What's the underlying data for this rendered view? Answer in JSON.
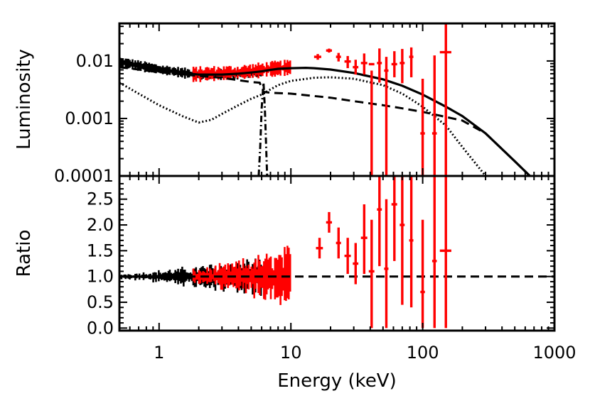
{
  "chart_data": [
    {
      "type": "line",
      "panel": "top",
      "title": "",
      "xlabel": "",
      "ylabel": "Luminosity",
      "xscale": "log",
      "yscale": "log",
      "xlim": [
        0.5,
        1000
      ],
      "ylim": [
        0.0001,
        0.045
      ],
      "y_tick_labels": [
        {
          "value": 0.01,
          "label": "0.01"
        },
        {
          "value": 0.001,
          "label": "0.001"
        },
        {
          "value": 0.0001,
          "label": "0.0001"
        }
      ],
      "series": [
        {
          "name": "total model",
          "style": "solid",
          "color": "#000000",
          "x": [
            0.5,
            0.7,
            1,
            1.5,
            2,
            3,
            4,
            5,
            6,
            7,
            8,
            10,
            13,
            15,
            20,
            30,
            50,
            70,
            100,
            150,
            200,
            300,
            500,
            700
          ],
          "y": [
            0.0098,
            0.0078,
            0.0069,
            0.0062,
            0.0058,
            0.0058,
            0.006,
            0.0063,
            0.0066,
            0.007,
            0.0073,
            0.0075,
            0.0076,
            0.0075,
            0.0071,
            0.0062,
            0.0048,
            0.0037,
            0.0026,
            0.0016,
            0.0011,
            0.00055,
            0.00018,
            8.5e-05
          ]
        },
        {
          "name": "power-law component",
          "style": "dashed",
          "color": "#000000",
          "x": [
            0.5,
            0.7,
            1,
            2,
            3,
            5,
            5.8,
            6.2,
            7,
            10,
            20,
            30,
            50,
            70,
            100,
            200,
            300,
            500,
            700
          ],
          "y": [
            0.0078,
            0.0071,
            0.0064,
            0.0055,
            0.0051,
            0.0043,
            0.0042,
            0.0029,
            0.0028,
            0.0027,
            0.0023,
            0.002,
            0.0017,
            0.0015,
            0.0013,
            0.00092,
            0.00055,
            0.00018,
            8.5e-05
          ]
        },
        {
          "name": "reflection component",
          "style": "dotted",
          "color": "#000000",
          "x": [
            0.5,
            0.7,
            1,
            1.5,
            2,
            2.5,
            3,
            4,
            5,
            6,
            7,
            8,
            10,
            15,
            20,
            30,
            50,
            70,
            100,
            150,
            200,
            300
          ],
          "y": [
            0.0042,
            0.0027,
            0.0017,
            0.0011,
            0.00085,
            0.00095,
            0.0012,
            0.0017,
            0.0022,
            0.0026,
            0.0032,
            0.0038,
            0.0045,
            0.0051,
            0.0052,
            0.0049,
            0.0038,
            0.0027,
            0.0016,
            0.00075,
            0.00032,
            0.0001
          ]
        },
        {
          "name": "Fe K line",
          "style": "dash-dot",
          "color": "#000000",
          "x": [
            5.7,
            5.85,
            6.0,
            6.2,
            6.35,
            6.5,
            6.6
          ],
          "y": [
            0.0001,
            0.0003,
            0.0015,
            0.0042,
            0.0015,
            0.0003,
            0.0001
          ]
        }
      ],
      "data_sets": [
        {
          "name": "black data (soft band)",
          "color": "#000000",
          "x_range": [
            0.5,
            6.0
          ],
          "y_level_at": [
            [
              0.5,
              0.0096
            ],
            [
              1,
              0.0071
            ],
            [
              2,
              0.0057
            ],
            [
              4,
              0.0059
            ],
            [
              6,
              0.0063
            ]
          ],
          "scatter_fraction": 0.18
        },
        {
          "name": "red data (soft band)",
          "color": "#ff0000",
          "x_range": [
            1.8,
            10
          ],
          "y_level_at": [
            [
              1.8,
              0.0058
            ],
            [
              4,
              0.0062
            ],
            [
              7,
              0.0072
            ],
            [
              10,
              0.0077
            ]
          ],
          "scatter_fraction": 0.3
        },
        {
          "name": "red data (hard band)",
          "color": "#ff0000",
          "points": [
            {
              "x": 16,
              "xlo": 15,
              "xhi": 17,
              "y": 0.0118,
              "ylo": 0.0105,
              "yhi": 0.0132
            },
            {
              "x": 19.5,
              "xlo": 18.5,
              "xhi": 20.5,
              "y": 0.0152,
              "ylo": 0.014,
              "yhi": 0.0164
            },
            {
              "x": 23,
              "xlo": 22,
              "xhi": 24,
              "y": 0.0118,
              "ylo": 0.0098,
              "yhi": 0.0138
            },
            {
              "x": 27,
              "xlo": 25.5,
              "xhi": 28.5,
              "y": 0.0098,
              "ylo": 0.0075,
              "yhi": 0.0122
            },
            {
              "x": 31,
              "xlo": 29.5,
              "xhi": 32.5,
              "y": 0.0078,
              "ylo": 0.0058,
              "yhi": 0.0105
            },
            {
              "x": 36,
              "xlo": 34,
              "xhi": 38,
              "y": 0.0092,
              "ylo": 0.0058,
              "yhi": 0.0135
            },
            {
              "x": 41,
              "xlo": 39,
              "xhi": 43,
              "y": 0.0088,
              "ylo": 0.0001,
              "yhi": 0.0068
            },
            {
              "x": 47,
              "xlo": 45,
              "xhi": 49,
              "y": 0.0092,
              "ylo": 0.0042,
              "yhi": 0.0165
            },
            {
              "x": 53,
              "xlo": 51,
              "xhi": 55,
              "y": 0.0068,
              "ylo": 0.0001,
              "yhi": 0.0118
            },
            {
              "x": 61,
              "xlo": 58,
              "xhi": 64,
              "y": 0.0088,
              "ylo": 0.0052,
              "yhi": 0.0148
            },
            {
              "x": 70,
              "xlo": 67,
              "xhi": 73,
              "y": 0.0092,
              "ylo": 0.0041,
              "yhi": 0.0162
            },
            {
              "x": 82,
              "xlo": 79,
              "xhi": 85,
              "y": 0.0118,
              "ylo": 0.0052,
              "yhi": 0.0172
            },
            {
              "x": 100,
              "xlo": 96,
              "xhi": 104,
              "y": 0.00055,
              "ylo": 0.0001,
              "yhi": 0.0049
            },
            {
              "x": 123,
              "xlo": 118,
              "xhi": 128,
              "y": 0.00055,
              "ylo": 0.0001,
              "yhi": 0.0125
            },
            {
              "x": 150,
              "xlo": 135,
              "xhi": 165,
              "y": 0.0142,
              "ylo": 0.0001,
              "yhi": 0.045
            }
          ]
        }
      ]
    },
    {
      "type": "line",
      "panel": "bottom",
      "title": "",
      "xlabel": "Energy (keV)",
      "ylabel": "Ratio",
      "xscale": "log",
      "yscale": "linear",
      "xlim": [
        0.5,
        1000
      ],
      "ylim": [
        -0.05,
        2.95
      ],
      "x_tick_labels": [
        {
          "value": 1,
          "label": "1"
        },
        {
          "value": 10,
          "label": "10"
        },
        {
          "value": 100,
          "label": "100"
        },
        {
          "value": 1000,
          "label": "1000"
        }
      ],
      "y_tick_labels": [
        {
          "value": 0.0,
          "label": "0.0"
        },
        {
          "value": 0.5,
          "label": "0.5"
        },
        {
          "value": 1.0,
          "label": "1.0"
        },
        {
          "value": 1.5,
          "label": "1.5"
        },
        {
          "value": 2.0,
          "label": "2.0"
        },
        {
          "value": 2.5,
          "label": "2.5"
        }
      ],
      "series": [
        {
          "name": "unity reference",
          "style": "dashed",
          "color": "#000000",
          "x": [
            0.5,
            1000
          ],
          "y": [
            1.0,
            1.0
          ]
        }
      ],
      "data_sets": [
        {
          "name": "black ratio (soft band)",
          "color": "#000000",
          "x_range": [
            0.5,
            6.0
          ],
          "center": 1.0,
          "spread_start": 0.04,
          "spread_end": 0.28
        },
        {
          "name": "red ratio (soft band)",
          "color": "#ff0000",
          "x_range": [
            1.8,
            10
          ],
          "center": 1.0,
          "spread_start": 0.1,
          "spread_end": 0.42
        },
        {
          "name": "red ratio (hard band)",
          "color": "#ff0000",
          "points": [
            {
              "x": 16.5,
              "xlo": 15.5,
              "xhi": 17.5,
              "y": 1.55,
              "ylo": 1.35,
              "yhi": 1.75
            },
            {
              "x": 19.5,
              "xlo": 18.5,
              "xhi": 20.5,
              "y": 2.05,
              "ylo": 1.85,
              "yhi": 2.25
            },
            {
              "x": 23,
              "xlo": 22,
              "xhi": 24,
              "y": 1.65,
              "ylo": 1.35,
              "yhi": 1.95
            },
            {
              "x": 27,
              "xlo": 25.5,
              "xhi": 28.5,
              "y": 1.4,
              "ylo": 1.05,
              "yhi": 1.75
            },
            {
              "x": 31,
              "xlo": 29.5,
              "xhi": 32.5,
              "y": 1.25,
              "ylo": 0.85,
              "yhi": 1.65
            },
            {
              "x": 36,
              "xlo": 34,
              "xhi": 38,
              "y": 1.75,
              "ylo": 1.05,
              "yhi": 2.4
            },
            {
              "x": 41,
              "xlo": 39,
              "xhi": 43,
              "y": 1.1,
              "ylo": 0.0,
              "yhi": 2.1
            },
            {
              "x": 47,
              "xlo": 45,
              "xhi": 49,
              "y": 2.3,
              "ylo": 1.2,
              "yhi": 2.95
            },
            {
              "x": 53,
              "xlo": 51,
              "xhi": 55,
              "y": 1.15,
              "ylo": 0.0,
              "yhi": 2.5
            },
            {
              "x": 61,
              "xlo": 58,
              "xhi": 64,
              "y": 2.4,
              "ylo": 1.3,
              "yhi": 2.95
            },
            {
              "x": 70,
              "xlo": 67,
              "xhi": 73,
              "y": 2.0,
              "ylo": 0.45,
              "yhi": 2.95
            },
            {
              "x": 82,
              "xlo": 79,
              "xhi": 85,
              "y": 1.7,
              "ylo": 0.4,
              "yhi": 2.95
            },
            {
              "x": 100,
              "xlo": 96,
              "xhi": 104,
              "y": 0.7,
              "ylo": 0.0,
              "yhi": 2.1
            },
            {
              "x": 123,
              "xlo": 118,
              "xhi": 128,
              "y": 1.3,
              "ylo": 0.0,
              "yhi": 2.95
            },
            {
              "x": 150,
              "xlo": 135,
              "xhi": 165,
              "y": 1.5,
              "ylo": 0.0,
              "yhi": 2.95
            }
          ]
        }
      ]
    }
  ]
}
